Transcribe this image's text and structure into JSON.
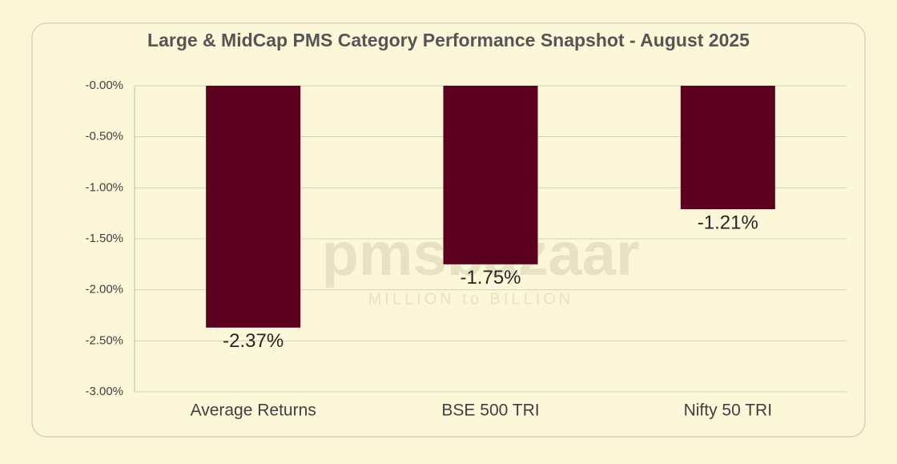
{
  "chart_data": {
    "type": "bar",
    "title": "Large & MidCap PMS Category Performance Snapshot - August 2025",
    "categories": [
      "Average Returns",
      "BSE 500 TRI",
      "Nifty 50 TRI"
    ],
    "values": [
      -2.37,
      -1.75,
      -1.21
    ],
    "value_labels": [
      "-2.37%",
      "-1.75%",
      "-1.21%"
    ],
    "color": "#5c0020",
    "ylim": [
      -3,
      0
    ],
    "yticks": [
      {
        "value": 0,
        "label": "-0.00%"
      },
      {
        "value": -0.5,
        "label": "-0.50%"
      },
      {
        "value": -1,
        "label": "-1.00%"
      },
      {
        "value": -1.5,
        "label": "-1.50%"
      },
      {
        "value": -2,
        "label": "-2.00%"
      },
      {
        "value": -2.5,
        "label": "-2.50%"
      },
      {
        "value": -3,
        "label": "-3.00%"
      }
    ],
    "grid": true,
    "watermark": {
      "brand": "pmsbazaar",
      "tagline": "MILLION to BILLION"
    }
  }
}
